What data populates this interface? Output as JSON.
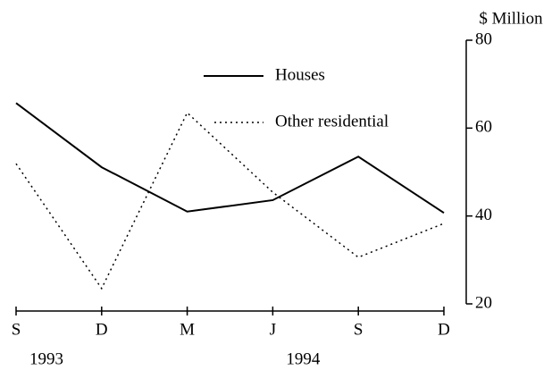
{
  "chart_data": {
    "type": "line",
    "y_axis_label": "$ Million",
    "categories": [
      "S",
      "D",
      "M",
      "J",
      "S",
      "D"
    ],
    "year_row": [
      "1993",
      null,
      null,
      "1994",
      null,
      null
    ],
    "series": [
      {
        "name": "Houses",
        "color": "#000000",
        "style": "solid",
        "values": [
          65.7,
          51.1,
          41,
          43.6,
          53.5,
          40.7
        ]
      },
      {
        "name": "Other residential",
        "color": "#000000",
        "style": "dotted",
        "values": [
          51.9,
          23.5,
          63.5,
          45.4,
          30.6,
          38.3
        ]
      }
    ],
    "ylim": [
      20,
      80
    ],
    "yticks": [
      20,
      40,
      60,
      80
    ],
    "y_axis_side": "right",
    "grid": false
  }
}
